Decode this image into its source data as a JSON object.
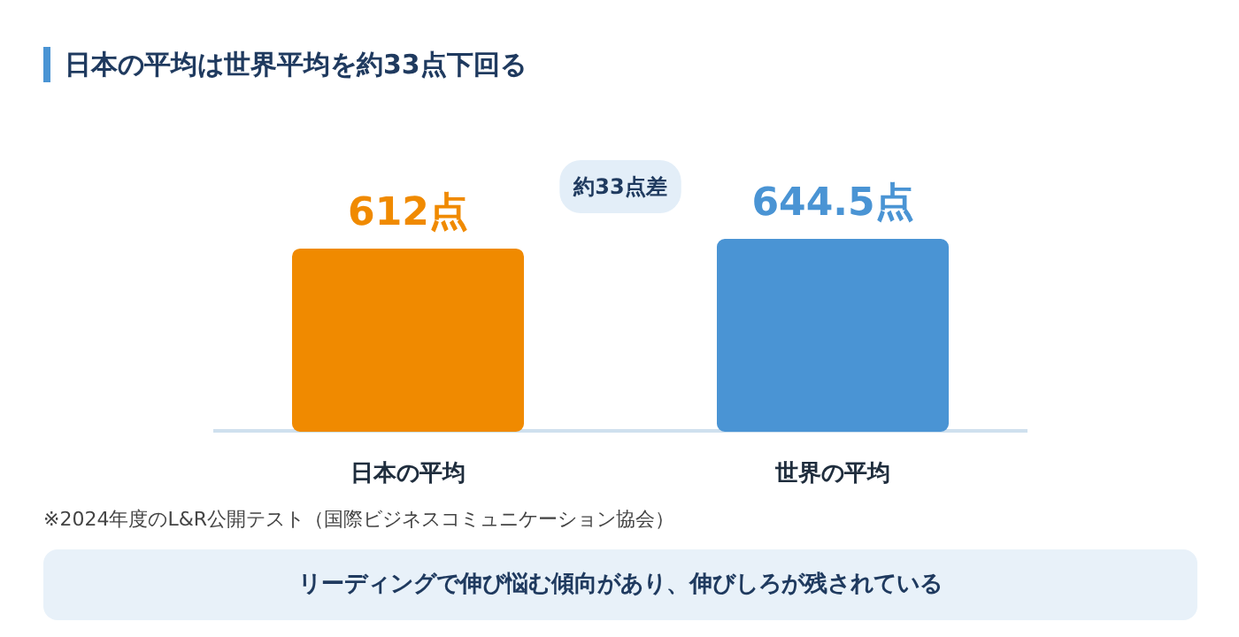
{
  "chart_data": {
    "type": "bar",
    "title": "日本の平均は世界平均を約33点下回る",
    "categories": [
      "日本の平均",
      "世界の平均"
    ],
    "values": [
      612,
      644.5
    ],
    "colors": [
      "#f08a00",
      "#4a94d4"
    ],
    "value_labels": [
      "612点",
      "644.5点"
    ],
    "annotations": [
      "約33点差",
      "※2024年度のL&R公開テスト（国際ビジネスコミュニケーション協会）",
      "リーディングで伸び悩む傾向があり、伸びしろが残されている"
    ],
    "grid": false
  }
}
